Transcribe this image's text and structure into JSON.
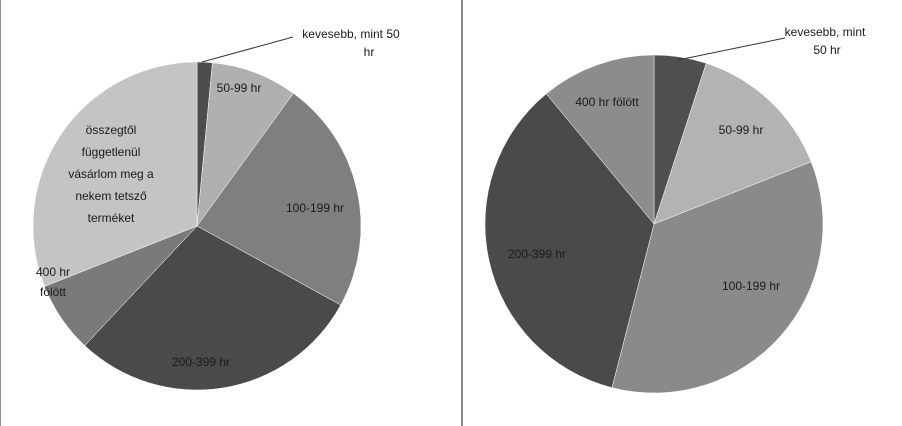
{
  "chart_data": [
    {
      "type": "pie",
      "slices": [
        {
          "label": "kevesebb, mint 50 hr",
          "value": 1.5,
          "color": "#4d4d4d"
        },
        {
          "label": "50-99 hr",
          "value": 8.5,
          "color": "#b0b0b0"
        },
        {
          "label": "100-199 hr",
          "value": 23,
          "color": "#7f7f7f"
        },
        {
          "label": "200-399 hr",
          "value": 29,
          "color": "#4a4a4a"
        },
        {
          "label": "400 hr fölött",
          "value": 7,
          "color": "#7a7a7a"
        },
        {
          "label": "összegtől függetlenül vásárlom meg a nekem tetsző terméket",
          "value": 31,
          "color": "#c4c4c4"
        }
      ],
      "title": "",
      "legend": "none"
    },
    {
      "type": "pie",
      "slices": [
        {
          "label": "kevesebb, mint 50 hr",
          "value": 5,
          "color": "#4f4f4f"
        },
        {
          "label": "50-99 hr",
          "value": 14,
          "color": "#b3b3b3"
        },
        {
          "label": "100-199 hr",
          "value": 35,
          "color": "#8a8a8a"
        },
        {
          "label": "200-399 hr",
          "value": 35,
          "color": "#4a4a4a"
        },
        {
          "label": "400 hr fölött",
          "value": 11,
          "color": "#8c8c8c"
        }
      ],
      "title": "",
      "legend": "none"
    }
  ]
}
